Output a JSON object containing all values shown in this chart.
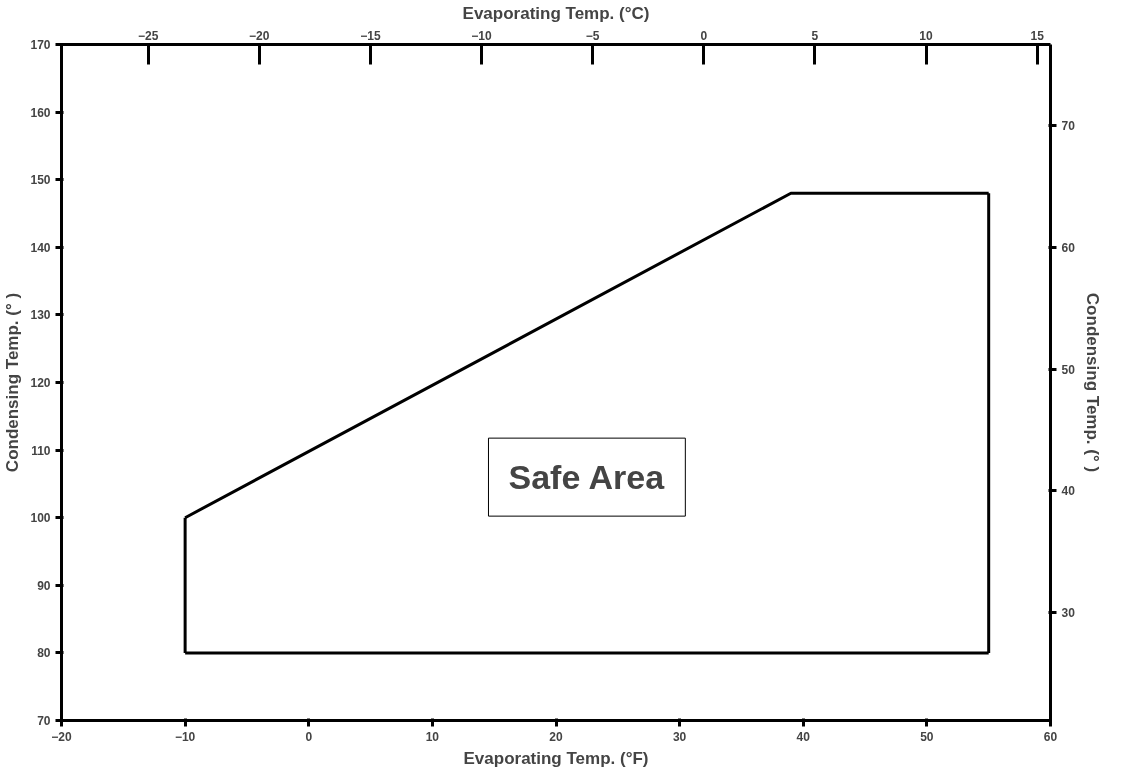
{
  "chart_data": {
    "type": "line",
    "xlabel": "Evaporating Temp. (°F)",
    "ylabel": "Condensing Temp. (° )",
    "x2label": "Evaporating Temp. (°C)",
    "y2label": "Condensing Temp. (° )",
    "series": [
      {
        "color": "#000000",
        "x": [
          -10,
          39,
          55
        ],
        "values": [
          100,
          148,
          148
        ]
      },
      {
        "color": "#000000",
        "x": [
          -10,
          55
        ],
        "values": [
          80,
          80
        ]
      },
      {
        "color": "#000000",
        "x": [
          -10,
          -10
        ],
        "values": [
          80,
          100
        ]
      },
      {
        "color": "#000000",
        "x": [
          55,
          55
        ],
        "values": [
          80,
          148
        ]
      }
    ],
    "xlim": [
      -20,
      60
    ],
    "xticks": [
      -20,
      -10,
      0,
      10,
      20,
      30,
      40,
      50,
      60
    ],
    "ylim": [
      70,
      170
    ],
    "yticks": [
      70,
      80,
      90,
      100,
      110,
      120,
      130,
      140,
      150,
      160,
      170
    ],
    "x2lim": [
      -28.9,
      15.6
    ],
    "x2ticks": [
      -25,
      -20,
      -15,
      -10,
      -5,
      0,
      5,
      10,
      15
    ],
    "y2lim": [
      21.1,
      76.7
    ],
    "y2ticks": [
      30,
      40,
      50,
      60,
      70
    ],
    "annotations": [
      "Safe Area"
    ],
    "grid": false,
    "marker": "none",
    "line_style": "solid"
  }
}
